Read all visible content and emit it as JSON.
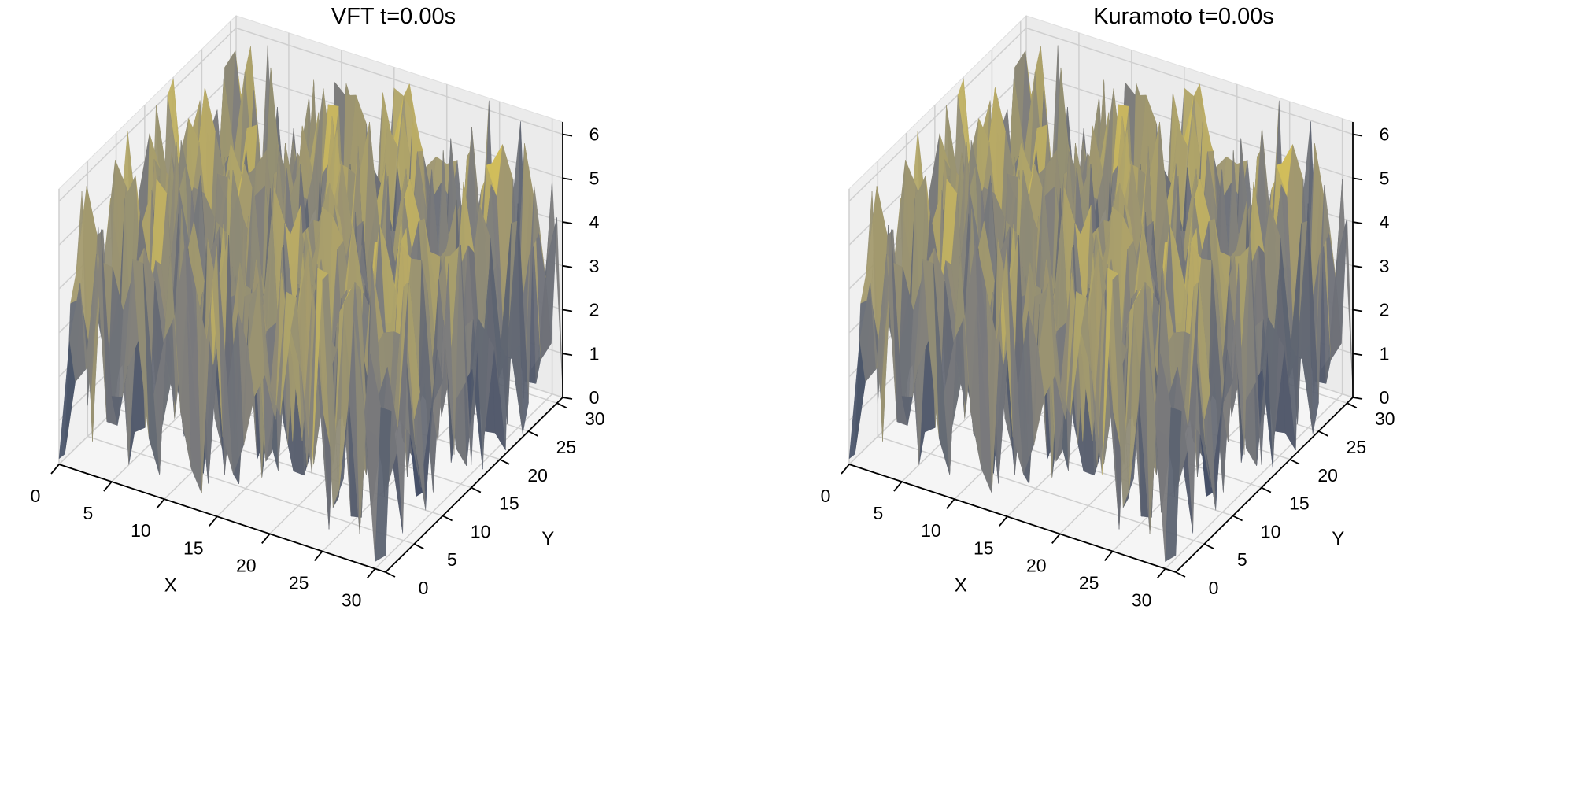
{
  "chart_data": [
    {
      "type": "surface3d",
      "title": "VFT t=0.00s",
      "xlabel": "X",
      "ylabel": "Y",
      "zlabel": "",
      "xlim": [
        0,
        31
      ],
      "ylim": [
        0,
        31
      ],
      "zlim": [
        0,
        6.28
      ],
      "x_ticks": [
        "0",
        "5",
        "10",
        "15",
        "20",
        "25",
        "30"
      ],
      "y_ticks": [
        "0",
        "5",
        "10",
        "15",
        "20",
        "25",
        "30"
      ],
      "z_ticks": [
        "0",
        "1",
        "2",
        "3",
        "4",
        "5",
        "6"
      ],
      "grid": true,
      "colormap": "cividis",
      "color_low": "#2a3a5e",
      "color_mid": "#7d7d7d",
      "color_high": "#e8cf52",
      "grid_size": [
        32,
        32
      ],
      "surface": "random phase field in [0, 2π) on a 32×32 grid"
    },
    {
      "type": "surface3d",
      "title": "Kuramoto t=0.00s",
      "xlabel": "X",
      "ylabel": "Y",
      "zlabel": "",
      "xlim": [
        0,
        31
      ],
      "ylim": [
        0,
        31
      ],
      "zlim": [
        0,
        6.28
      ],
      "x_ticks": [
        "0",
        "5",
        "10",
        "15",
        "20",
        "25",
        "30"
      ],
      "y_ticks": [
        "0",
        "5",
        "10",
        "15",
        "20",
        "25",
        "30"
      ],
      "z_ticks": [
        "0",
        "1",
        "2",
        "3",
        "4",
        "5",
        "6"
      ],
      "grid": true,
      "colormap": "cividis",
      "color_low": "#2a3a5e",
      "color_mid": "#7d7d7d",
      "color_high": "#e8cf52",
      "grid_size": [
        32,
        32
      ],
      "surface": "random phase field in [0, 2π) on a 32×32 grid"
    }
  ]
}
